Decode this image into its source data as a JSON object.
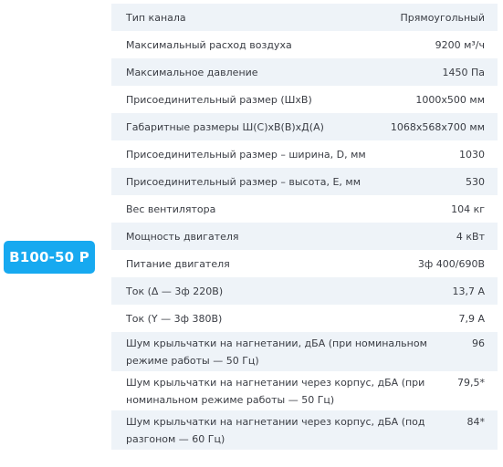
{
  "model": "B100-50 P",
  "specs": [
    {
      "label": "Тип канала",
      "value": "Прямоугольный"
    },
    {
      "label": "Максимальный расход воздуха",
      "value": "9200 м³/ч"
    },
    {
      "label": "Максимальное давление",
      "value": "1450 Па"
    },
    {
      "label": "Присоединительный размер (ШхВ)",
      "value": "1000x500 мм"
    },
    {
      "label": "Габаритные размеры Ш(С)хВ(В)хД(А)",
      "value": "1068x568x700 мм"
    },
    {
      "label": "Присоединительный размер – ширина, D, мм",
      "value": "1030"
    },
    {
      "label": "Присоединительный размер – высота, E, мм",
      "value": "530"
    },
    {
      "label": "Вес вентилятора",
      "value": "104 кг"
    },
    {
      "label": "Мощность двигателя",
      "value": "4 кВт"
    },
    {
      "label": "Питание двигателя",
      "value": "3ф 400/690В"
    },
    {
      "label": "Ток (Δ — 3ф 220В)",
      "value": "13,7 А"
    },
    {
      "label": "Ток (Y — 3ф 380В)",
      "value": "7,9 А"
    },
    {
      "label": "Шум крыльчатки на нагнетании, дБА (при номинальном режиме работы — 50 Гц)",
      "value": "96"
    },
    {
      "label": "Шум крыльчатки на нагнетании через корпус, дБА (при номинальном режиме работы — 50 Гц)",
      "value": "79,5*"
    },
    {
      "label": "Шум крыльчатки на нагнетании через корпус, дБА (под разгоном — 60 Гц)",
      "value": "84*"
    }
  ]
}
